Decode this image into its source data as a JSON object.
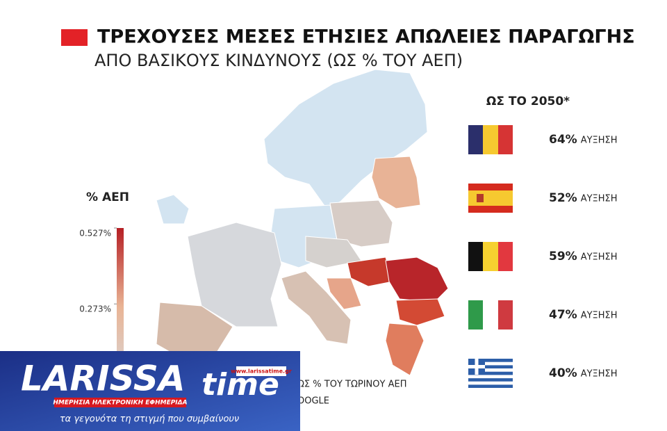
{
  "header": {
    "title": "ΤΡΕΧΟΥΣΕΣ ΜΕΣΕΣ ΕΤΗΣΙΕΣ ΑΠΩΛΕΙΕΣ ΠΑΡΑΓΩΓΗΣ",
    "subtitle": "ΑΠΟ ΒΑΣΙΚΟΥΣ ΚΙΝΔΥΝΟΥΣ (ΩΣ % ΤΟΥ ΑΕΠ)"
  },
  "legend": {
    "title": "% ΑΕΠ",
    "range": [
      0,
      0.527
    ],
    "ticks": [
      {
        "value": 0.527,
        "label": "0.527%"
      },
      {
        "value": 0.273,
        "label": "0.273%"
      }
    ]
  },
  "projection": {
    "title": "ΩΣ ΤΟ 2050*",
    "unit_text": "ΑΥΞΗΣΗ",
    "values": [
      64,
      52,
      59,
      47,
      40
    ],
    "value_labels": [
      "64%",
      "52%",
      "59%",
      "47%",
      "40%"
    ]
  },
  "footnote": [
    "ΩΣ % ΤΟΥ ΤΩΡΙΝΟΥ ΑΕΠ",
    "OOGLE"
  ],
  "logo": {
    "name": "LARISSA",
    "name2": "time",
    "url": "www.larissatime.gr",
    "tagline": "ΗΜΕΡΗΣΙΑ ΗΛΕΚΤΡΟΝΙΚΗ ΕΦΗΜΕΡΙΔΑ",
    "slogan": "τα γεγονότα τη στιγμή που συμβαίνουν"
  }
}
